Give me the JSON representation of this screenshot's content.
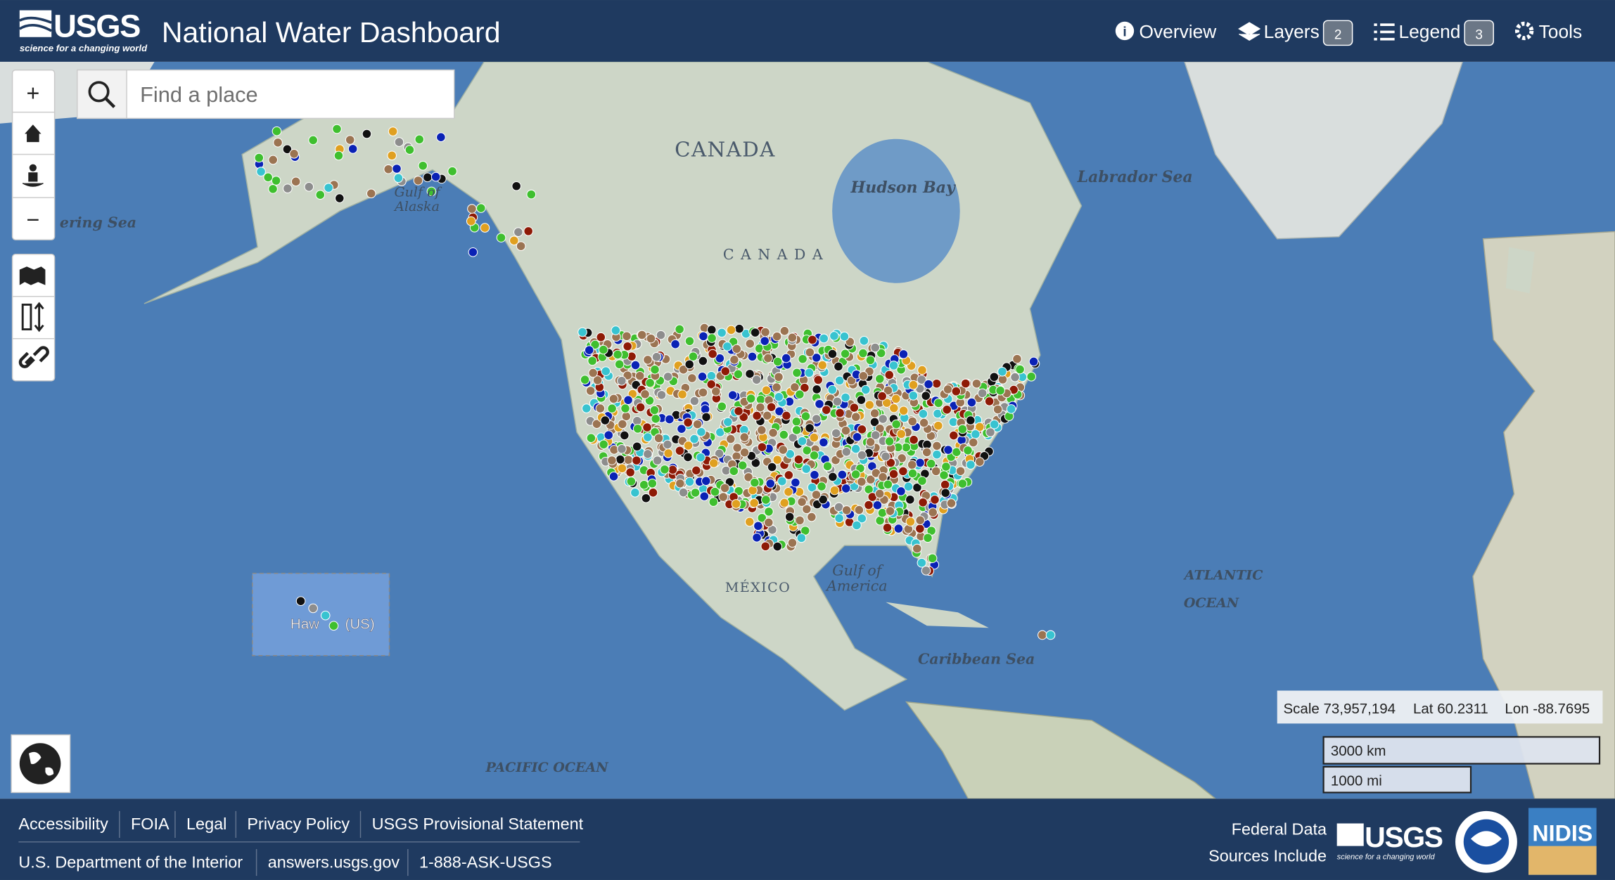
{
  "header": {
    "brand": "USGS",
    "tagline": "science for a changing world",
    "title": "National Water Dashboard",
    "nav": [
      {
        "label": "Overview"
      },
      {
        "label": "Layers",
        "count": "2"
      },
      {
        "label": "Legend",
        "count": "3"
      },
      {
        "label": "Tools"
      }
    ]
  },
  "map_controls": {
    "zoom_in": "+",
    "zoom_out": "−"
  },
  "search": {
    "placeholder": "Find a place"
  },
  "map_labels": {
    "canada": "CANADA",
    "hudson_bay": "Hudson Bay",
    "labrador_sea": "Labrador Sea",
    "bering_sea": "ering Sea",
    "gulf_of_alaska": [
      "Gulf of",
      "Alaska"
    ],
    "canada_spaced": "C A N A D A",
    "gulf_of_america": [
      "Gulf of",
      "America"
    ],
    "mexico": "MÉXICO",
    "atlantic_ocean": [
      "ATLANTIC",
      "OCEAN"
    ],
    "caribbean_sea": "Caribbean Sea",
    "pacific_ocean": "PACIFIC OCEAN",
    "hawaii": [
      "Haw",
      "(US)"
    ]
  },
  "status": {
    "scale": "Scale 73,957,194",
    "lat": "Lat 60.2311",
    "lon": "Lon -88.7695"
  },
  "scalebar": {
    "km": "3000 km",
    "mi": "1000 mi"
  },
  "footer": {
    "links": [
      "Accessibility",
      "FOIA",
      "Legal",
      "Privacy Policy",
      "USGS Provisional Statement"
    ],
    "links2": [
      "U.S. Department of the Interior",
      "answers.usgs.gov",
      "1-888-ASK-USGS"
    ],
    "sources": [
      "Federal Data",
      "Sources Include"
    ],
    "partners": [
      "USGS",
      "NIDIS"
    ]
  }
}
